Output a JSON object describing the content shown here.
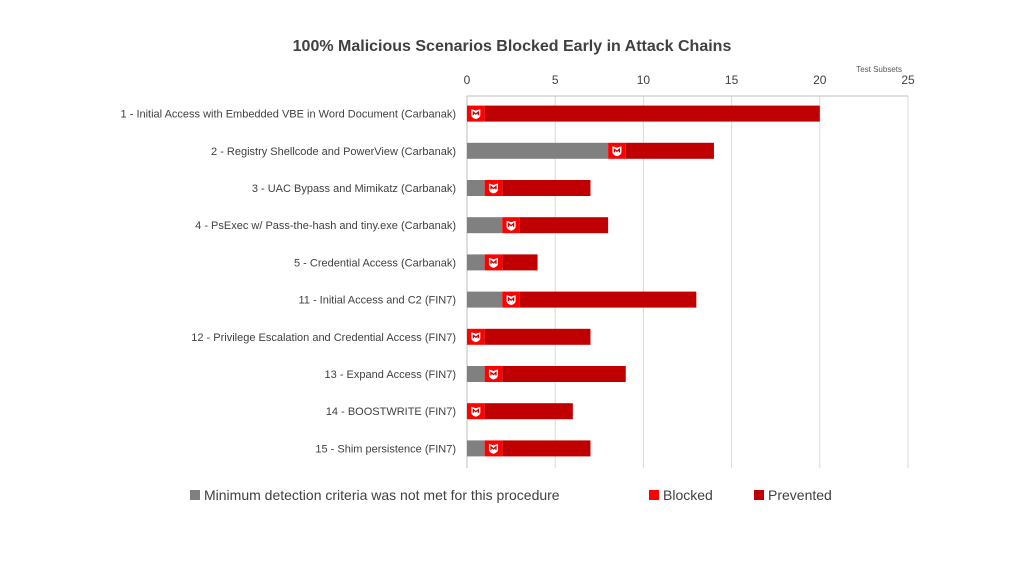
{
  "chart_data": {
    "type": "bar",
    "stacked": true,
    "orientation": "horizontal",
    "title": "100% Malicious Scenarios Blocked Early in Attack Chains",
    "xlabel": "Test Subsets",
    "ylabel": "",
    "xlim": [
      0,
      25
    ],
    "xticks": [
      "0",
      "5",
      "10",
      "15",
      "20",
      "25"
    ],
    "grid": true,
    "legend_position": "bottom",
    "categories": [
      "1 - Initial Access with Embedded VBE in Word Document (Carbanak)",
      "2 - Registry Shellcode and PowerView (Carbanak)",
      "3 - UAC Bypass and Mimikatz (Carbanak)",
      "4 - PsExec w/ Pass-the-hash and tiny.exe (Carbanak)",
      "5 - Credential Access (Carbanak)",
      "11 - Initial Access and C2 (FIN7)",
      "12 - Privilege Escalation and Credential Access (FIN7)",
      "13 - Expand Access (FIN7)",
      "14 - BOOSTWRITE (FIN7)",
      "15 - Shim persistence (FIN7)"
    ],
    "series": [
      {
        "name": "Minimum detection criteria was not met for this procedure",
        "color": "#808080",
        "values": [
          0,
          8,
          1,
          2,
          1,
          2,
          0,
          1,
          0,
          1
        ]
      },
      {
        "name": "Blocked",
        "color": "#ff0000",
        "values": [
          1,
          1,
          1,
          1,
          1,
          1,
          1,
          1,
          1,
          1
        ]
      },
      {
        "name": "Prevented",
        "color": "#c00000",
        "values": [
          19,
          5,
          5,
          5,
          2,
          10,
          6,
          7,
          5,
          5
        ]
      }
    ],
    "marker_icon": "mcafee-shield-icon"
  }
}
